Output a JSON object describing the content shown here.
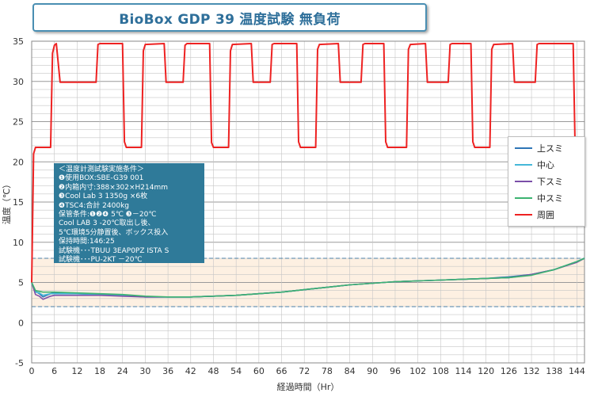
{
  "chart_data": {
    "type": "line",
    "title": "BioBox GDP 39 温度試験  無負荷",
    "xlabel": "経過時間（Hr）",
    "ylabel": "温度（℃）",
    "xlim": [
      0,
      146
    ],
    "ylim": [
      -5,
      35
    ],
    "xticks": [
      0,
      6,
      12,
      18,
      24,
      30,
      36,
      42,
      48,
      54,
      60,
      66,
      72,
      78,
      84,
      90,
      96,
      102,
      108,
      114,
      120,
      126,
      132,
      138,
      144
    ],
    "yticks": [
      -5,
      0,
      5,
      10,
      15,
      20,
      25,
      30,
      35
    ],
    "grid": true,
    "reference_lines": [
      2,
      8
    ],
    "legend_position": "right",
    "series": [
      {
        "name": "上スミ",
        "color": "#2e75b6",
        "x": [
          0,
          1,
          2,
          3,
          4,
          5,
          6,
          12,
          18,
          24,
          30,
          36,
          42,
          48,
          54,
          60,
          66,
          72,
          78,
          84,
          90,
          96,
          102,
          108,
          114,
          120,
          126,
          132,
          138,
          144,
          146
        ],
        "y": [
          5.0,
          3.9,
          3.6,
          3.2,
          3.4,
          3.6,
          3.7,
          3.6,
          3.5,
          3.4,
          3.2,
          3.2,
          3.2,
          3.3,
          3.4,
          3.6,
          3.8,
          4.1,
          4.4,
          4.7,
          4.9,
          5.1,
          5.2,
          5.3,
          5.4,
          5.5,
          5.7,
          6.0,
          6.6,
          7.6,
          8.0
        ]
      },
      {
        "name": "中心",
        "color": "#45b8d8",
        "x": [
          0,
          1,
          2,
          3,
          4,
          5,
          6,
          12,
          18,
          24,
          30,
          36,
          42,
          48,
          54,
          60,
          66,
          72,
          78,
          84,
          90,
          96,
          102,
          108,
          114,
          120,
          126,
          132,
          138,
          144,
          146
        ],
        "y": [
          5.0,
          3.8,
          3.7,
          3.4,
          3.5,
          3.6,
          3.6,
          3.6,
          3.5,
          3.4,
          3.2,
          3.2,
          3.2,
          3.3,
          3.4,
          3.6,
          3.8,
          4.1,
          4.4,
          4.7,
          4.9,
          5.1,
          5.2,
          5.3,
          5.4,
          5.5,
          5.6,
          6.0,
          6.6,
          7.6,
          8.0
        ]
      },
      {
        "name": "下スミ",
        "color": "#7b4fa8",
        "x": [
          0,
          1,
          2,
          3,
          4,
          5,
          6,
          12,
          18,
          24,
          30,
          36,
          42,
          48,
          54,
          60,
          66,
          72,
          78,
          84,
          90,
          96,
          102,
          108,
          114,
          120,
          126,
          132,
          138,
          144,
          146
        ],
        "y": [
          5.0,
          3.5,
          3.3,
          2.9,
          3.1,
          3.3,
          3.4,
          3.4,
          3.4,
          3.3,
          3.2,
          3.2,
          3.2,
          3.3,
          3.4,
          3.6,
          3.8,
          4.1,
          4.4,
          4.7,
          4.9,
          5.1,
          5.2,
          5.3,
          5.4,
          5.5,
          5.6,
          6.0,
          6.6,
          7.5,
          8.0
        ]
      },
      {
        "name": "中スミ",
        "color": "#3cb371",
        "x": [
          0,
          1,
          2,
          3,
          4,
          5,
          6,
          12,
          18,
          24,
          30,
          36,
          42,
          48,
          54,
          60,
          66,
          72,
          78,
          84,
          90,
          96,
          102,
          108,
          114,
          120,
          126,
          132,
          138,
          144,
          146
        ],
        "y": [
          5.0,
          4.0,
          3.9,
          3.8,
          3.8,
          3.8,
          3.8,
          3.7,
          3.6,
          3.5,
          3.3,
          3.2,
          3.2,
          3.3,
          3.4,
          3.6,
          3.8,
          4.1,
          4.4,
          4.7,
          4.9,
          5.1,
          5.2,
          5.3,
          5.4,
          5.5,
          5.6,
          5.9,
          6.6,
          7.6,
          8.0
        ]
      },
      {
        "name": "周囲",
        "color": "#ee2222",
        "x": [
          0,
          0.5,
          1,
          5,
          5.5,
          6,
          6.5,
          7.5,
          17,
          17.5,
          18,
          24,
          24.5,
          25,
          29,
          29.5,
          30,
          35,
          35.5,
          36,
          40,
          40.5,
          41,
          47,
          47.5,
          48,
          52,
          52.5,
          53,
          58,
          58.5,
          59,
          63,
          63.5,
          64,
          70,
          70.5,
          71,
          75,
          75.5,
          76,
          81,
          81.5,
          82,
          87,
          87.5,
          88,
          93,
          93.5,
          94,
          99,
          99.5,
          100,
          104,
          104.5,
          105,
          110,
          110.5,
          111,
          116,
          116.5,
          117,
          121,
          121.5,
          122,
          127,
          127.5,
          128,
          133,
          133.5,
          134,
          143,
          143.5,
          144,
          146
        ],
        "y": [
          5,
          21,
          21.8,
          21.8,
          33.5,
          34.5,
          34.7,
          29.9,
          29.9,
          34.6,
          34.7,
          34.7,
          22.5,
          21.8,
          21.8,
          33.8,
          34.6,
          34.7,
          29.9,
          29.9,
          29.9,
          34.5,
          34.7,
          34.7,
          22.4,
          21.8,
          21.8,
          33.8,
          34.6,
          34.7,
          29.9,
          29.9,
          29.9,
          34.6,
          34.7,
          34.7,
          22.5,
          21.8,
          21.8,
          34.0,
          34.6,
          34.7,
          29.9,
          29.9,
          29.9,
          34.6,
          34.7,
          34.7,
          22.5,
          21.8,
          21.8,
          34.0,
          34.6,
          34.7,
          29.9,
          29.9,
          29.9,
          34.6,
          34.7,
          34.7,
          22.5,
          21.8,
          21.8,
          34.0,
          34.6,
          34.7,
          29.9,
          29.9,
          29.9,
          34.6,
          34.7,
          34.7,
          22.5,
          21.8,
          21.8
        ]
      }
    ]
  },
  "legend_items": [
    "上スミ",
    "中心",
    "下スミ",
    "中スミ",
    "周囲"
  ],
  "notes_lines": [
    "＜温度計測試験実施条件＞",
    "❶使用BOX:SBE-G39 001",
    "❷内箱内寸:388×302×H214mm",
    "❸Cool Lab 3 1350g ×6枚",
    "❹TSC4:合計 2400kg",
    "保管条件:❶❷❹  5℃  ❸－20℃",
    "Cool LAB 3 -20℃取出し後、",
    "5℃環境5分静置後、ボックス投入",
    "保持時間:146:25",
    "試験機･･･TBUU  3EAP0PZ ISTA S",
    "試験機･･･PU-2KT  －20℃"
  ],
  "colors": {
    "title": "#2e6f9a",
    "notes_bg": "#2f7a99",
    "band": "#fdf0e2",
    "reference": "#4a7fa8"
  }
}
